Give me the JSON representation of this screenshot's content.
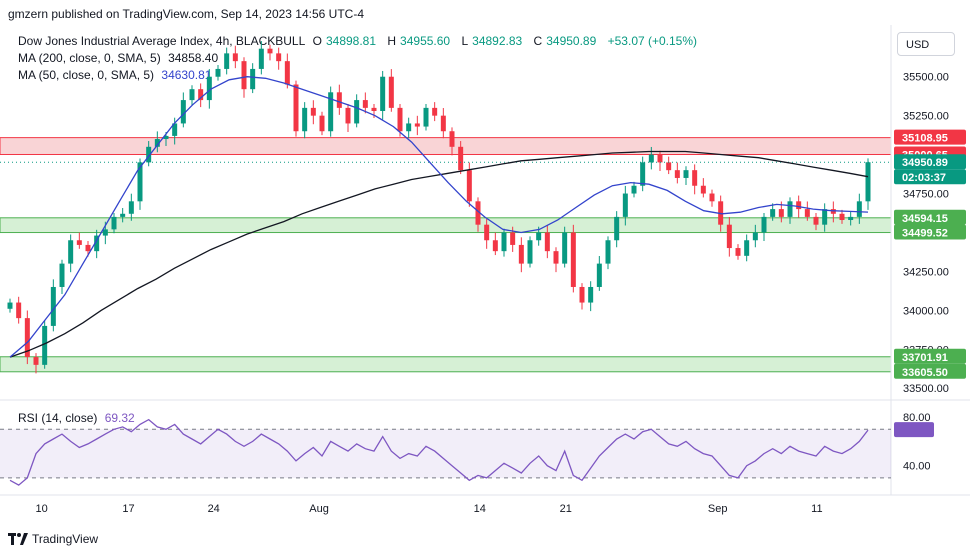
{
  "header": {
    "published": "gmzern published on TradingView.com, Sep 14, 2023 14:56 UTC-4"
  },
  "legend": {
    "symbol": "Dow Jones Industrial Average Index, 4h, BLACKBULL",
    "ohlc": [
      {
        "k": "O",
        "v": "34898.81"
      },
      {
        "k": "H",
        "v": "34955.60"
      },
      {
        "k": "L",
        "v": "34892.83"
      },
      {
        "k": "C",
        "v": "34950.89"
      }
    ],
    "change": "+53.07 (+0.15%)",
    "ma200_label": "MA (200, close, 0, SMA, 5)",
    "ma200_value": "34858.40",
    "ma50_label": "MA (50, close, 0, SMA, 5)",
    "ma50_value": "34630.81",
    "rsi_label": "RSI (14, close)",
    "rsi_value": "69.32"
  },
  "currency_button": "USD",
  "footer": {
    "brand": "TradingView"
  },
  "colors": {
    "up": "#089981",
    "down": "#f23645",
    "ma200": "#131722",
    "ma50": "#3344cc",
    "rsi": "#7e57c2",
    "resistance_zone": "#f7c5c8",
    "support_zone": "#c8ebc7"
  },
  "chart_data": {
    "type": "candlestick",
    "timeframe": "4h",
    "x_tick_labels": [
      "10",
      "17",
      "24",
      "Aug",
      "14",
      "21",
      "Sep",
      "11"
    ],
    "y_tick_labels": [
      "35500.00",
      "35250.00",
      "34750.00",
      "34250.00",
      "34000.00",
      "33750.00",
      "33500.00"
    ],
    "ylim": [
      33450,
      35800
    ],
    "price_labels": [
      {
        "value": 35108.95,
        "text": "35108.95",
        "color": "#f23645"
      },
      {
        "value": 35000.65,
        "text": "35000.65",
        "color": "#f23645"
      },
      {
        "value": 34950.89,
        "text": "34950.89",
        "color": "#089981"
      },
      {
        "value": 34594.15,
        "text": "34594.15",
        "color": "#4caf50"
      },
      {
        "value": 34499.52,
        "text": "34499.52",
        "color": "#4caf50"
      },
      {
        "value": 33701.91,
        "text": "33701.91",
        "color": "#4caf50"
      },
      {
        "value": 33605.5,
        "text": "33605.50",
        "color": "#4caf50"
      }
    ],
    "countdown": "02:03:37",
    "zones": [
      {
        "name": "resistance",
        "low": 35000.65,
        "high": 35108.95
      },
      {
        "name": "support-1",
        "low": 34499.52,
        "high": 34594.15
      },
      {
        "name": "support-2",
        "low": 33605.5,
        "high": 33701.91
      }
    ],
    "last_price": 34950.89,
    "close_path": [
      34050,
      33950,
      33700,
      33650,
      33900,
      34150,
      34300,
      34450,
      34420,
      34380,
      34480,
      34520,
      34600,
      34620,
      34700,
      34950,
      35050,
      35100,
      35120,
      35200,
      35350,
      35420,
      35350,
      35500,
      35550,
      35650,
      35600,
      35420,
      35550,
      35680,
      35650,
      35600,
      35450,
      35150,
      35300,
      35250,
      35150,
      35400,
      35300,
      35200,
      35350,
      35300,
      35280,
      35500,
      35300,
      35150,
      35200,
      35180,
      35300,
      35250,
      35150,
      35050,
      34900,
      34700,
      34550,
      34450,
      34380,
      34500,
      34420,
      34300,
      34450,
      34500,
      34380,
      34300,
      34500,
      34150,
      34050,
      34150,
      34300,
      34450,
      34600,
      34750,
      34800,
      34950,
      35000,
      34950,
      34900,
      34850,
      34900,
      34800,
      34750,
      34700,
      34550,
      34400,
      34350,
      34450,
      34500,
      34600,
      34650,
      34600,
      34700,
      34650,
      34600,
      34550,
      34650,
      34620,
      34580,
      34600,
      34700,
      34951
    ],
    "ma200_path": [
      33700,
      33740,
      33790,
      33850,
      33920,
      34000,
      34070,
      34140,
      34200,
      34270,
      34330,
      34390,
      34440,
      34490,
      34530,
      34570,
      34620,
      34660,
      34700,
      34740,
      34780,
      34810,
      34840,
      34860,
      34880,
      34900,
      34920,
      34940,
      34960,
      34970,
      34980,
      34990,
      35000,
      35010,
      35015,
      35020,
      35020,
      35020,
      35010,
      35000,
      34990,
      34980,
      34960,
      34940,
      34920,
      34900,
      34880,
      34858
    ],
    "ma50_path": [
      33700,
      33800,
      33950,
      34100,
      34300,
      34500,
      34700,
      34900,
      35050,
      35200,
      35320,
      35420,
      35480,
      35500,
      35490,
      35460,
      35420,
      35380,
      35340,
      35300,
      35250,
      35180,
      35080,
      34950,
      34820,
      34700,
      34600,
      34520,
      34500,
      34520,
      34580,
      34660,
      34740,
      34800,
      34820,
      34810,
      34770,
      34700,
      34640,
      34620,
      34630,
      34660,
      34680,
      34670,
      34650,
      34640,
      34635,
      34631
    ],
    "rsi": {
      "y_tick_labels": [
        "80.00",
        "40.00"
      ],
      "ylim": [
        20,
        90
      ],
      "band": [
        30,
        70
      ],
      "values": [
        28,
        24,
        30,
        50,
        58,
        62,
        66,
        60,
        55,
        58,
        62,
        66,
        70,
        72,
        68,
        74,
        78,
        72,
        70,
        74,
        66,
        62,
        58,
        64,
        70,
        66,
        60,
        56,
        60,
        66,
        62,
        58,
        52,
        44,
        50,
        55,
        48,
        60,
        56,
        52,
        58,
        54,
        52,
        64,
        52,
        46,
        50,
        48,
        56,
        52,
        46,
        40,
        34,
        28,
        32,
        30,
        36,
        42,
        38,
        34,
        42,
        48,
        40,
        36,
        52,
        32,
        28,
        38,
        48,
        55,
        62,
        66,
        62,
        68,
        70,
        64,
        58,
        56,
        60,
        54,
        50,
        48,
        40,
        32,
        30,
        40,
        44,
        50,
        54,
        50,
        56,
        52,
        50,
        48,
        56,
        52,
        50,
        54,
        60,
        69.32
      ]
    }
  }
}
